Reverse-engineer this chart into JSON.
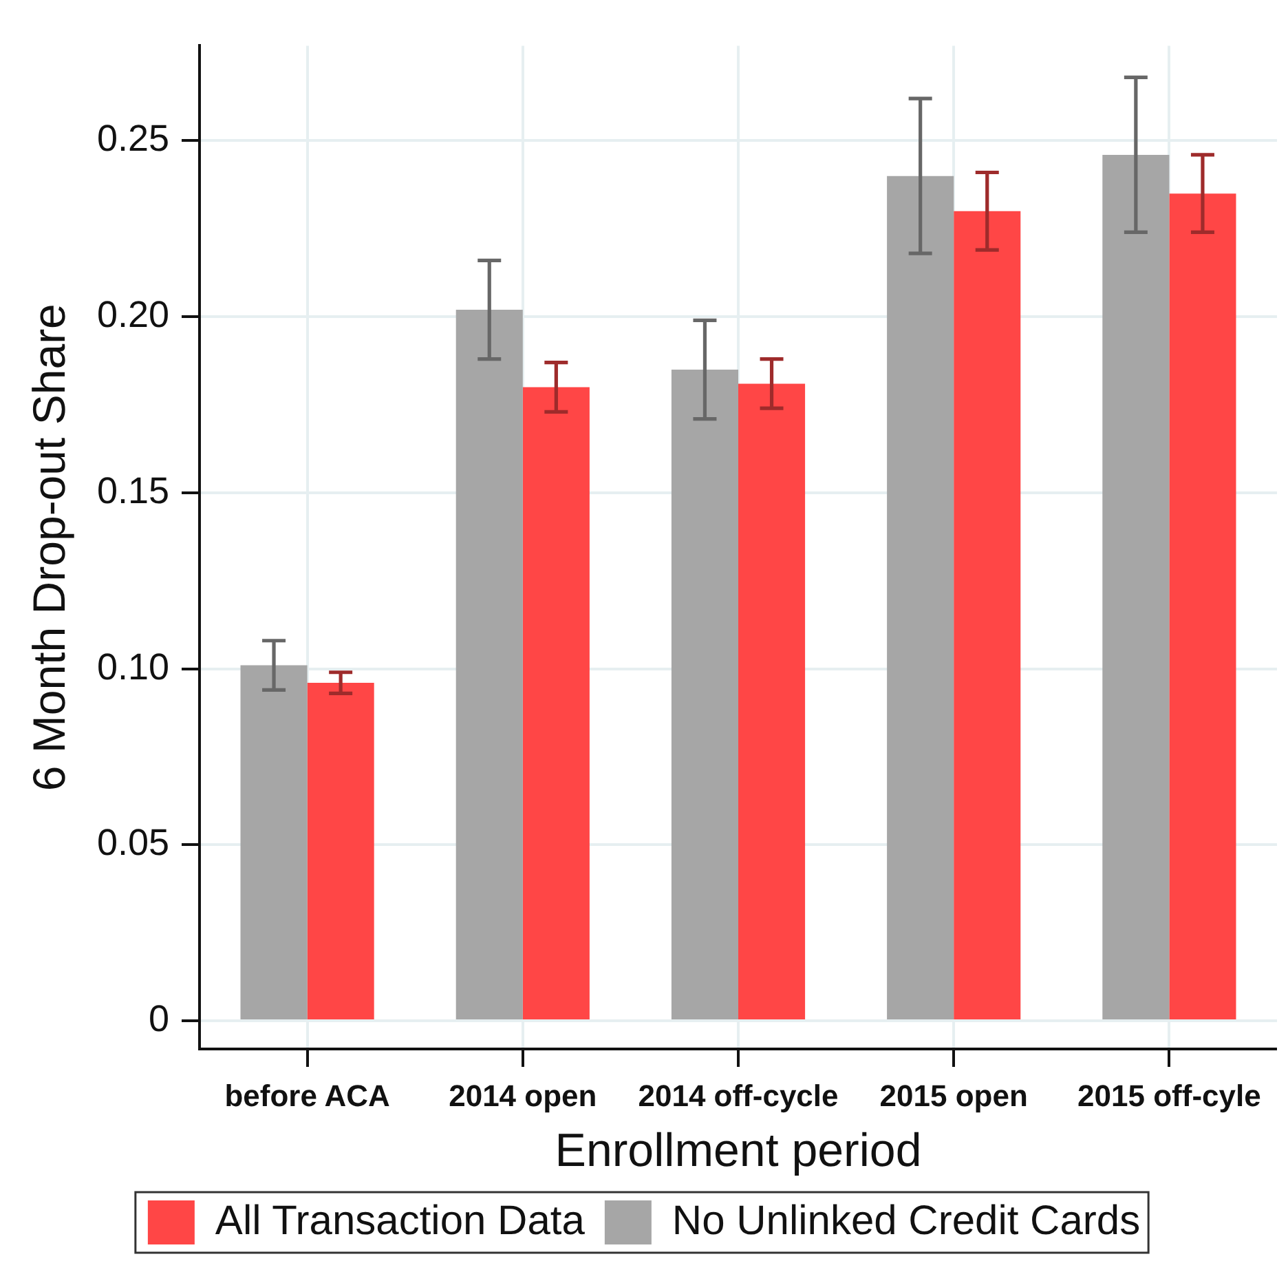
{
  "chart_data": {
    "type": "bar",
    "xlabel": "Enrollment period",
    "ylabel": "6 Month Drop-out Share",
    "categories": [
      "before ACA",
      "2014 open",
      "2014 off-cycle",
      "2015 open",
      "2015 off-cyle"
    ],
    "series": [
      {
        "name": "No Unlinked Credit Cards",
        "color": "#a6a6a6",
        "values": [
          0.101,
          0.202,
          0.185,
          0.24,
          0.246
        ],
        "errors": [
          0.007,
          0.014,
          0.014,
          0.022,
          0.022
        ]
      },
      {
        "name": "All Transaction Data",
        "color": "#ff4646",
        "values": [
          0.096,
          0.18,
          0.181,
          0.23,
          0.235
        ],
        "errors": [
          0.003,
          0.007,
          0.007,
          0.011,
          0.011
        ]
      }
    ],
    "ylim": [
      -0.008,
      0.277
    ],
    "yticks": [
      0,
      0.05,
      {
        "value": 0.1,
        "label": "0.10"
      },
      0.15,
      {
        "value": 0.2,
        "label": "0.20"
      },
      0.25
    ],
    "grid": true,
    "legend": "bottom"
  }
}
